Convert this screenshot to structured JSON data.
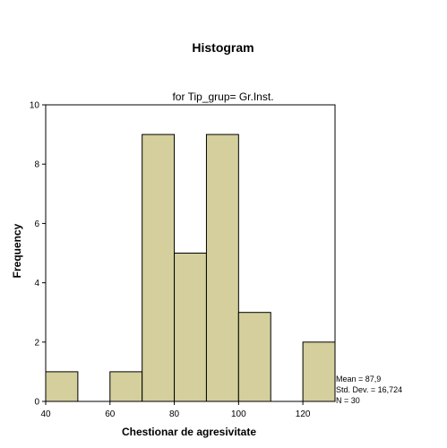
{
  "chart_data": {
    "type": "bar",
    "title": "Histogram",
    "subtitle": "for Tip_grup= Gr.Inst.",
    "xlabel": "Chestionar de agresivitate",
    "ylabel": "Frequency",
    "xlim": [
      40,
      130
    ],
    "ylim": [
      0,
      10
    ],
    "xticks": [
      40,
      60,
      80,
      100,
      120
    ],
    "yticks": [
      0,
      2,
      4,
      6,
      8,
      10
    ],
    "bins": [
      {
        "from": 40,
        "to": 50,
        "count": 1
      },
      {
        "from": 50,
        "to": 60,
        "count": 0
      },
      {
        "from": 60,
        "to": 70,
        "count": 1
      },
      {
        "from": 70,
        "to": 80,
        "count": 9
      },
      {
        "from": 80,
        "to": 90,
        "count": 5
      },
      {
        "from": 90,
        "to": 100,
        "count": 9
      },
      {
        "from": 100,
        "to": 110,
        "count": 3
      },
      {
        "from": 110,
        "to": 120,
        "count": 0
      },
      {
        "from": 120,
        "to": 130,
        "count": 2
      }
    ],
    "bar_color": "#d4cf9c",
    "stats": {
      "mean": "Mean = 87,9",
      "std": "Std. Dev. = 16,724",
      "n": "N = 30"
    }
  }
}
